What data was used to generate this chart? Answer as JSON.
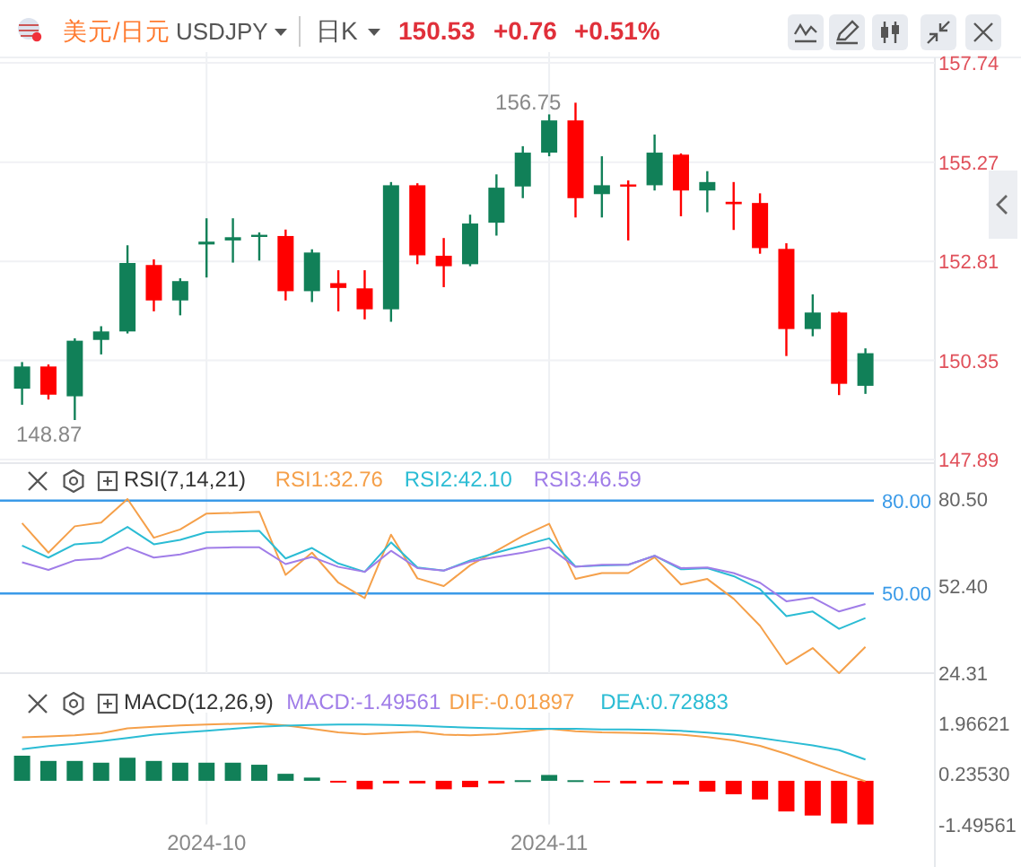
{
  "chart_data": [
    {
      "type": "candlestick",
      "title": "美元/日元",
      "subtitle": "USDJPY",
      "annotations": [
        "日K",
        "150.53",
        "+0.76",
        "+0.51%",
        "156.75",
        "148.87"
      ],
      "categories": [
        null,
        null,
        null,
        null,
        null,
        null,
        null,
        "2024-10",
        null,
        null,
        null,
        null,
        null,
        null,
        null,
        null,
        null,
        null,
        null,
        null,
        "2024-11",
        null,
        null,
        null,
        null,
        null,
        null,
        null,
        null,
        null,
        null,
        null,
        null
      ],
      "ohlc": [
        [
          149.65,
          150.31,
          149.25,
          150.2
        ],
        [
          150.2,
          150.25,
          149.38,
          149.5
        ],
        [
          149.46,
          150.9,
          148.87,
          150.84
        ],
        [
          150.86,
          151.2,
          150.5,
          151.07
        ],
        [
          151.07,
          153.21,
          151.02,
          152.77
        ],
        [
          152.72,
          152.86,
          151.57,
          151.84
        ],
        [
          151.84,
          152.39,
          151.47,
          152.32
        ],
        [
          153.23,
          153.88,
          152.41,
          153.3
        ],
        [
          153.33,
          153.88,
          152.78,
          153.41
        ],
        [
          153.42,
          153.53,
          152.83,
          153.47
        ],
        [
          153.44,
          153.6,
          151.84,
          152.07
        ],
        [
          152.07,
          153.11,
          151.8,
          153.03
        ],
        [
          152.27,
          152.59,
          151.57,
          152.15
        ],
        [
          152.14,
          152.59,
          151.37,
          151.62
        ],
        [
          151.62,
          154.78,
          151.31,
          154.7
        ],
        [
          154.7,
          154.75,
          152.74,
          152.96
        ],
        [
          152.95,
          153.39,
          152.17,
          152.69
        ],
        [
          152.74,
          153.97,
          152.69,
          153.75
        ],
        [
          153.77,
          154.97,
          153.45,
          154.64
        ],
        [
          154.67,
          155.67,
          154.38,
          155.51
        ],
        [
          155.51,
          156.46,
          155.42,
          156.31
        ],
        [
          156.31,
          156.75,
          153.9,
          154.38
        ],
        [
          154.48,
          155.42,
          153.9,
          154.7
        ],
        [
          154.72,
          154.82,
          153.33,
          154.67
        ],
        [
          154.7,
          155.96,
          154.57,
          155.51
        ],
        [
          155.46,
          155.49,
          153.93,
          154.57
        ],
        [
          154.57,
          155.05,
          154.03,
          154.78
        ],
        [
          154.29,
          154.78,
          153.59,
          154.23
        ],
        [
          154.26,
          154.5,
          153.0,
          153.14
        ],
        [
          153.12,
          153.26,
          150.46,
          151.13
        ],
        [
          151.13,
          151.99,
          150.95,
          151.54
        ],
        [
          151.54,
          151.56,
          149.49,
          149.77
        ],
        [
          149.72,
          150.65,
          149.52,
          150.53
        ]
      ],
      "colors": [
        "#118058",
        "#ff0000",
        "#118058",
        "#118058",
        "#118058",
        "#ff0000",
        "#118058",
        "#118058",
        "#118058",
        "#118058",
        "#ff0000",
        "#118058",
        "#ff0000",
        "#ff0000",
        "#118058",
        "#ff0000",
        "#ff0000",
        "#118058",
        "#118058",
        "#118058",
        "#118058",
        "#ff0000",
        "#118058",
        "#ff0000",
        "#118058",
        "#ff0000",
        "#118058",
        "#ff0000",
        "#ff0000",
        "#ff0000",
        "#118058",
        "#ff0000",
        "#118058"
      ],
      "ylim": [
        147.89,
        157.74
      ],
      "yticks": [
        157.74,
        155.27,
        152.81,
        150.35,
        147.89
      ],
      "grid": true,
      "tick_labels": "y"
    },
    {
      "type": "line",
      "title": "RSI(7,14,21)",
      "categories": [
        null,
        null,
        null,
        null,
        null,
        null,
        null,
        "2024-10",
        null,
        null,
        null,
        null,
        null,
        null,
        null,
        null,
        null,
        null,
        null,
        null,
        "2024-11",
        null,
        null,
        null,
        null,
        null,
        null,
        null,
        null,
        null,
        null,
        null,
        null
      ],
      "series": [
        {
          "name": "RSI1:32.76",
          "color": "#f5a04a",
          "values": [
            72.7,
            63.2,
            71.7,
            72.9,
            80.5,
            68.0,
            70.7,
            75.8,
            76.0,
            76.4,
            56.0,
            63.2,
            53.5,
            48.5,
            69.0,
            54.9,
            52.4,
            59.1,
            63.8,
            68.6,
            72.5,
            54.7,
            56.6,
            56.6,
            61.7,
            52.9,
            54.7,
            48.3,
            39.6,
            27.2,
            32.4,
            24.31,
            32.76
          ]
        },
        {
          "name": "RSI2:42.10",
          "color": "#2bbcd4",
          "values": [
            65.5,
            61.6,
            65.9,
            66.5,
            71.5,
            65.9,
            67.3,
            69.8,
            70.0,
            70.2,
            61.3,
            64.7,
            59.7,
            57.0,
            66.5,
            58.4,
            57.4,
            60.7,
            63.2,
            65.5,
            67.8,
            58.7,
            59.1,
            59.3,
            62.2,
            57.8,
            58.2,
            55.6,
            51.4,
            42.7,
            44.2,
            38.6,
            42.1
          ]
        },
        {
          "name": "RSI3:46.59",
          "color": "#a07de8",
          "values": [
            60.1,
            57.6,
            60.7,
            61.3,
            64.9,
            61.6,
            62.6,
            64.7,
            64.9,
            64.9,
            59.5,
            61.8,
            58.6,
            57.0,
            63.8,
            58.2,
            57.4,
            60.3,
            61.8,
            63.2,
            64.9,
            58.6,
            59.3,
            59.3,
            62.2,
            58.2,
            58.4,
            56.6,
            53.5,
            47.5,
            48.7,
            44.2,
            46.59
          ]
        }
      ],
      "ylim": [
        24.31,
        80.5
      ],
      "yticks": [
        {
          "value": 80.5,
          "label": "80.50"
        },
        {
          "value": 52.4,
          "label": "52.40"
        },
        {
          "value": 24.31,
          "label": "24.31"
        }
      ],
      "ref_lines": [
        {
          "axis": "y",
          "value": 80,
          "label": "80.00",
          "color": "#3a9ae8"
        },
        {
          "axis": "y",
          "value": 50,
          "label": "50.00",
          "color": "#3a9ae8"
        }
      ],
      "grid": "x",
      "legend": "top",
      "tick_labels": "y"
    },
    {
      "type": "bar",
      "title": "MACD(12,26,9)",
      "annotations": [
        "MACD:-1.49561"
      ],
      "categories": [
        null,
        null,
        null,
        null,
        null,
        null,
        null,
        "2024-10",
        null,
        null,
        null,
        null,
        null,
        null,
        null,
        null,
        null,
        null,
        null,
        null,
        "2024-11",
        null,
        null,
        null,
        null,
        null,
        null,
        null,
        null,
        null,
        null,
        null,
        null
      ],
      "series": [
        {
          "type": "bar",
          "colors": [
            "#118058",
            "#118058",
            "#118058",
            "#118058",
            "#118058",
            "#118058",
            "#118058",
            "#118058",
            "#118058",
            "#118058",
            "#118058",
            "#118058",
            "#ff0000",
            "#ff0000",
            "#ff0000",
            "#ff0000",
            "#ff0000",
            "#ff0000",
            "#ff0000",
            "#118058",
            "#118058",
            "#118058",
            "#ff0000",
            "#ff0000",
            "#ff0000",
            "#ff0000",
            "#ff0000",
            "#ff0000",
            "#ff0000",
            "#ff0000",
            "#ff0000",
            "#ff0000",
            "#ff0000"
          ],
          "values": [
            0.86,
            0.68,
            0.68,
            0.62,
            0.79,
            0.68,
            0.62,
            0.62,
            0.62,
            0.55,
            0.24,
            0.11,
            -0.02,
            -0.29,
            -0.09,
            -0.09,
            -0.29,
            -0.22,
            -0.09,
            0.02,
            0.2,
            0.02,
            -0.04,
            -0.09,
            -0.09,
            -0.13,
            -0.37,
            -0.46,
            -0.64,
            -1.05,
            -1.19,
            -1.46,
            -1.49561
          ]
        },
        {
          "name": "DIF:-0.01897",
          "type": "line",
          "color": "#f5a04a",
          "values": [
            1.49,
            1.52,
            1.56,
            1.63,
            1.8,
            1.85,
            1.9,
            1.93,
            1.95,
            1.96621,
            1.9,
            1.78,
            1.66,
            1.6,
            1.64,
            1.68,
            1.58,
            1.56,
            1.6,
            1.68,
            1.78,
            1.7,
            1.66,
            1.64,
            1.62,
            1.58,
            1.5,
            1.38,
            1.2,
            0.92,
            0.6,
            0.28,
            -0.01897
          ]
        },
        {
          "name": "DEA:0.72883",
          "type": "line",
          "color": "#2bbcd4",
          "values": [
            1.08,
            1.19,
            1.27,
            1.36,
            1.47,
            1.58,
            1.65,
            1.71,
            1.78,
            1.85,
            1.89,
            1.91,
            1.93,
            1.93,
            1.91,
            1.89,
            1.85,
            1.82,
            1.8,
            1.78,
            1.78,
            1.78,
            1.76,
            1.76,
            1.74,
            1.71,
            1.65,
            1.58,
            1.47,
            1.34,
            1.21,
            1.05,
            0.72883
          ]
        }
      ],
      "ylim": [
        -1.49561,
        1.96621
      ],
      "yticks": [
        1.96621,
        {
          "value": 0.2353,
          "label": "0.23530"
        },
        -1.49561
      ],
      "grid": "x",
      "legend": "top"
    }
  ]
}
